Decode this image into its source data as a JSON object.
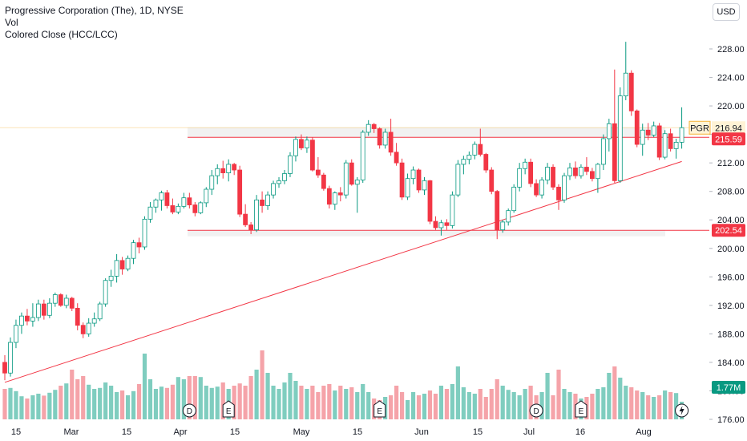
{
  "header": {
    "title": "Progressive Corporation (The), 1D, NYSE",
    "indicators": [
      "Vol",
      "Colored Close (HCC/LCC)"
    ],
    "currency": "USD"
  },
  "colors": {
    "up": "#089981",
    "down": "#f23645",
    "up_vol": "#7fcdbf",
    "down_vol": "#f5a3a9",
    "hcc": "#f5b335",
    "level_line": "#f23645",
    "band_fill": "#f0f0f0"
  },
  "chart_data": {
    "type": "candlestick",
    "symbol": "PGR",
    "ylim": [
      176,
      229.5
    ],
    "y_ticks": [
      "228.00",
      "224.00",
      "220.00",
      "216.00",
      "212.00",
      "208.00",
      "204.00",
      "200.00",
      "196.00",
      "192.00",
      "188.00",
      "184.00",
      "180.00",
      "176.00"
    ],
    "x_ticks": [
      "15",
      "Mar",
      "15",
      "Apr",
      "15",
      "May",
      "15",
      "Jun",
      "15",
      "Jul",
      "16",
      "Aug"
    ],
    "last_price": {
      "label": "PGR",
      "value": "216.94"
    },
    "price_labels": [
      "215.59",
      "202.54"
    ],
    "volume_label": "1.77M",
    "levels": [
      215.59,
      202.54
    ],
    "bands": [
      [
        215.59,
        217.0
      ],
      [
        202.54,
        201.7
      ]
    ],
    "trendline": {
      "from": [
        "Feb 8",
        181.2
      ],
      "to": [
        "Aug 2",
        212.2
      ]
    },
    "events": [
      "D",
      "E",
      "E",
      "D",
      "E"
    ],
    "candles": [
      {
        "o": 184.0,
        "h": 185.0,
        "l": 181.5,
        "c": 182.5,
        "v": 0.95,
        "d": "Feb 8"
      },
      {
        "o": 182.5,
        "h": 187.5,
        "l": 182.0,
        "c": 186.8,
        "v": 0.98,
        "d": "Feb 9"
      },
      {
        "o": 186.8,
        "h": 190.0,
        "l": 186.0,
        "c": 189.2,
        "v": 0.88,
        "d": "Feb 12"
      },
      {
        "o": 189.2,
        "h": 191.0,
        "l": 188.0,
        "c": 190.5,
        "v": 0.72,
        "d": "Feb 13"
      },
      {
        "o": 190.5,
        "h": 191.5,
        "l": 189.2,
        "c": 189.8,
        "v": 0.65,
        "d": "Feb 14"
      },
      {
        "o": 189.8,
        "h": 192.3,
        "l": 189.0,
        "c": 190.3,
        "v": 0.75,
        "d": "Feb 15"
      },
      {
        "o": 190.3,
        "h": 192.8,
        "l": 189.8,
        "c": 192.2,
        "v": 0.8,
        "d": "Feb 16"
      },
      {
        "o": 192.2,
        "h": 192.8,
        "l": 190.0,
        "c": 190.6,
        "v": 0.74,
        "d": "Feb 20"
      },
      {
        "o": 190.6,
        "h": 193.0,
        "l": 190.2,
        "c": 192.3,
        "v": 0.83,
        "d": "Feb 21"
      },
      {
        "o": 192.3,
        "h": 193.8,
        "l": 191.8,
        "c": 193.5,
        "v": 0.92,
        "d": "Feb 22"
      },
      {
        "o": 193.5,
        "h": 193.7,
        "l": 191.8,
        "c": 192.0,
        "v": 1.05,
        "d": "Feb 23"
      },
      {
        "o": 192.0,
        "h": 193.5,
        "l": 191.6,
        "c": 193.0,
        "v": 1.12,
        "d": "Feb 26"
      },
      {
        "o": 193.0,
        "h": 193.2,
        "l": 191.2,
        "c": 191.6,
        "v": 1.55,
        "d": "Feb 27"
      },
      {
        "o": 191.6,
        "h": 192.3,
        "l": 188.5,
        "c": 189.2,
        "v": 1.25,
        "d": "Feb 28"
      },
      {
        "o": 189.2,
        "h": 189.6,
        "l": 187.4,
        "c": 188.0,
        "v": 1.35,
        "d": "Feb 29"
      },
      {
        "o": 188.0,
        "h": 190.2,
        "l": 187.6,
        "c": 189.5,
        "v": 1.08,
        "d": "Mar 1"
      },
      {
        "o": 189.5,
        "h": 191.0,
        "l": 189.0,
        "c": 190.1,
        "v": 0.95,
        "d": "Mar 4"
      },
      {
        "o": 190.1,
        "h": 192.5,
        "l": 189.8,
        "c": 192.2,
        "v": 0.98,
        "d": "Mar 5"
      },
      {
        "o": 192.2,
        "h": 195.8,
        "l": 191.8,
        "c": 195.5,
        "v": 1.15,
        "d": "Mar 6"
      },
      {
        "o": 195.5,
        "h": 197.0,
        "l": 194.6,
        "c": 196.1,
        "v": 1.05,
        "d": "Mar 7"
      },
      {
        "o": 196.1,
        "h": 199.2,
        "l": 195.2,
        "c": 198.3,
        "v": 0.85,
        "d": "Mar 8"
      },
      {
        "o": 198.3,
        "h": 198.8,
        "l": 196.3,
        "c": 197.1,
        "v": 0.9,
        "d": "Mar 11"
      },
      {
        "o": 197.1,
        "h": 199.0,
        "l": 196.8,
        "c": 198.6,
        "v": 0.75,
        "d": "Mar 12"
      },
      {
        "o": 198.6,
        "h": 201.2,
        "l": 197.8,
        "c": 200.8,
        "v": 0.88,
        "d": "Mar 13"
      },
      {
        "o": 200.8,
        "h": 201.5,
        "l": 199.3,
        "c": 200.2,
        "v": 1.1,
        "d": "Mar 14"
      },
      {
        "o": 200.2,
        "h": 204.5,
        "l": 199.8,
        "c": 204.1,
        "v": 2.05,
        "d": "Mar 15"
      },
      {
        "o": 204.1,
        "h": 206.5,
        "l": 203.6,
        "c": 205.8,
        "v": 1.25,
        "d": "Mar 18"
      },
      {
        "o": 205.8,
        "h": 207.0,
        "l": 205.0,
        "c": 206.8,
        "v": 0.95,
        "d": "Mar 19"
      },
      {
        "o": 206.8,
        "h": 208.1,
        "l": 205.3,
        "c": 207.8,
        "v": 1.02,
        "d": "Mar 20"
      },
      {
        "o": 207.8,
        "h": 208.2,
        "l": 205.6,
        "c": 206.0,
        "v": 0.98,
        "d": "Mar 21"
      },
      {
        "o": 206.0,
        "h": 207.0,
        "l": 204.8,
        "c": 205.1,
        "v": 1.08,
        "d": "Mar 22"
      },
      {
        "o": 205.1,
        "h": 206.3,
        "l": 204.8,
        "c": 205.9,
        "v": 1.32,
        "d": "Mar 25"
      },
      {
        "o": 205.9,
        "h": 207.8,
        "l": 205.6,
        "c": 207.1,
        "v": 1.25,
        "d": "Mar 26"
      },
      {
        "o": 207.1,
        "h": 207.8,
        "l": 205.6,
        "c": 206.1,
        "v": 1.35,
        "d": "Mar 27"
      },
      {
        "o": 206.1,
        "h": 206.5,
        "l": 204.5,
        "c": 205.0,
        "v": 1.35,
        "d": "Mar 28"
      },
      {
        "o": 205.0,
        "h": 206.6,
        "l": 204.8,
        "c": 206.4,
        "v": 1.32,
        "d": "Apr 1"
      },
      {
        "o": 206.4,
        "h": 208.6,
        "l": 205.8,
        "c": 208.3,
        "v": 1.05,
        "d": "Apr 2"
      },
      {
        "o": 208.3,
        "h": 211.0,
        "l": 207.5,
        "c": 210.2,
        "v": 0.98,
        "d": "Apr 3"
      },
      {
        "o": 210.2,
        "h": 211.8,
        "l": 209.0,
        "c": 211.2,
        "v": 1.02,
        "d": "Apr 4"
      },
      {
        "o": 211.2,
        "h": 212.3,
        "l": 209.8,
        "c": 210.6,
        "v": 1.15,
        "d": "Apr 5"
      },
      {
        "o": 210.6,
        "h": 212.5,
        "l": 209.4,
        "c": 211.8,
        "v": 0.95,
        "d": "Apr 8"
      },
      {
        "o": 211.8,
        "h": 212.0,
        "l": 210.3,
        "c": 211.0,
        "v": 1.05,
        "d": "Apr 9"
      },
      {
        "o": 211.0,
        "h": 211.6,
        "l": 204.4,
        "c": 204.8,
        "v": 1.12,
        "d": "Apr 10"
      },
      {
        "o": 204.8,
        "h": 206.2,
        "l": 203.0,
        "c": 203.3,
        "v": 1.05,
        "d": "Apr 11"
      },
      {
        "o": 203.3,
        "h": 203.7,
        "l": 202.0,
        "c": 202.6,
        "v": 1.35,
        "d": "Apr 12"
      },
      {
        "o": 202.6,
        "h": 207.5,
        "l": 202.3,
        "c": 206.8,
        "v": 1.55,
        "d": "Apr 15"
      },
      {
        "o": 206.8,
        "h": 208.0,
        "l": 205.0,
        "c": 206.0,
        "v": 2.15,
        "d": "Apr 16"
      },
      {
        "o": 206.0,
        "h": 208.0,
        "l": 205.4,
        "c": 207.5,
        "v": 1.45,
        "d": "Apr 17"
      },
      {
        "o": 207.5,
        "h": 209.5,
        "l": 207.0,
        "c": 209.1,
        "v": 1.05,
        "d": "Apr 18"
      },
      {
        "o": 209.1,
        "h": 210.0,
        "l": 208.5,
        "c": 209.5,
        "v": 0.95,
        "d": "Apr 19"
      },
      {
        "o": 209.5,
        "h": 211.0,
        "l": 209.0,
        "c": 210.5,
        "v": 1.15,
        "d": "Apr 22"
      },
      {
        "o": 210.5,
        "h": 213.5,
        "l": 210.0,
        "c": 213.0,
        "v": 1.45,
        "d": "Apr 23"
      },
      {
        "o": 213.0,
        "h": 215.7,
        "l": 212.2,
        "c": 215.3,
        "v": 1.2,
        "d": "Apr 24"
      },
      {
        "o": 215.3,
        "h": 216.0,
        "l": 213.8,
        "c": 214.1,
        "v": 1.05,
        "d": "Apr 25"
      },
      {
        "o": 214.1,
        "h": 215.7,
        "l": 213.4,
        "c": 215.2,
        "v": 0.95,
        "d": "Apr 26"
      },
      {
        "o": 215.2,
        "h": 215.6,
        "l": 210.8,
        "c": 211.0,
        "v": 1.05,
        "d": "Apr 29"
      },
      {
        "o": 211.0,
        "h": 212.8,
        "l": 209.9,
        "c": 210.3,
        "v": 0.85,
        "d": "Apr 30"
      },
      {
        "o": 210.3,
        "h": 210.6,
        "l": 208.1,
        "c": 208.4,
        "v": 1.05,
        "d": "May 1"
      },
      {
        "o": 208.4,
        "h": 208.8,
        "l": 205.6,
        "c": 206.2,
        "v": 1.1,
        "d": "May 2"
      },
      {
        "o": 206.2,
        "h": 208.0,
        "l": 205.4,
        "c": 207.8,
        "v": 0.9,
        "d": "May 3"
      },
      {
        "o": 207.8,
        "h": 208.6,
        "l": 206.6,
        "c": 207.5,
        "v": 1.05,
        "d": "May 6"
      },
      {
        "o": 207.5,
        "h": 212.4,
        "l": 207.0,
        "c": 212.0,
        "v": 0.95,
        "d": "May 7"
      },
      {
        "o": 212.0,
        "h": 212.5,
        "l": 208.8,
        "c": 209.0,
        "v": 1.0,
        "d": "May 8"
      },
      {
        "o": 209.0,
        "h": 210.0,
        "l": 205.0,
        "c": 209.6,
        "v": 0.85,
        "d": "May 9"
      },
      {
        "o": 209.6,
        "h": 216.6,
        "l": 209.2,
        "c": 216.3,
        "v": 1.1,
        "d": "May 10"
      },
      {
        "o": 216.3,
        "h": 218.0,
        "l": 215.8,
        "c": 217.4,
        "v": 0.85,
        "d": "May 13"
      },
      {
        "o": 217.4,
        "h": 217.6,
        "l": 216.2,
        "c": 216.8,
        "v": 0.65,
        "d": "May 14"
      },
      {
        "o": 216.8,
        "h": 217.0,
        "l": 214.0,
        "c": 214.5,
        "v": 0.6,
        "d": "May 15"
      },
      {
        "o": 214.5,
        "h": 216.8,
        "l": 214.0,
        "c": 216.3,
        "v": 0.7,
        "d": "May 16"
      },
      {
        "o": 216.3,
        "h": 218.2,
        "l": 213.0,
        "c": 213.5,
        "v": 0.75,
        "d": "May 17"
      },
      {
        "o": 213.5,
        "h": 214.8,
        "l": 211.6,
        "c": 212.0,
        "v": 1.05,
        "d": "May 20"
      },
      {
        "o": 212.0,
        "h": 212.6,
        "l": 206.8,
        "c": 207.2,
        "v": 0.85,
        "d": "May 21"
      },
      {
        "o": 207.2,
        "h": 210.5,
        "l": 206.8,
        "c": 209.8,
        "v": 0.6,
        "d": "May 22"
      },
      {
        "o": 209.8,
        "h": 211.5,
        "l": 209.0,
        "c": 211.0,
        "v": 0.85,
        "d": "May 23"
      },
      {
        "o": 211.0,
        "h": 211.2,
        "l": 207.8,
        "c": 208.2,
        "v": 0.75,
        "d": "May 24"
      },
      {
        "o": 208.2,
        "h": 210.0,
        "l": 207.5,
        "c": 209.5,
        "v": 0.8,
        "d": "May 28"
      },
      {
        "o": 209.5,
        "h": 209.6,
        "l": 203.4,
        "c": 203.8,
        "v": 0.9,
        "d": "May 29"
      },
      {
        "o": 203.8,
        "h": 204.5,
        "l": 202.6,
        "c": 202.9,
        "v": 0.8,
        "d": "May 30"
      },
      {
        "o": 202.9,
        "h": 204.0,
        "l": 201.8,
        "c": 203.6,
        "v": 1.05,
        "d": "May 31"
      },
      {
        "o": 203.6,
        "h": 204.1,
        "l": 202.6,
        "c": 203.2,
        "v": 0.95,
        "d": "Jun 3"
      },
      {
        "o": 203.2,
        "h": 208.0,
        "l": 202.8,
        "c": 207.5,
        "v": 1.1,
        "d": "Jun 4"
      },
      {
        "o": 207.5,
        "h": 212.4,
        "l": 207.2,
        "c": 211.8,
        "v": 1.65,
        "d": "Jun 5"
      },
      {
        "o": 211.8,
        "h": 213.0,
        "l": 210.4,
        "c": 212.5,
        "v": 1.0,
        "d": "Jun 6"
      },
      {
        "o": 212.5,
        "h": 213.6,
        "l": 211.8,
        "c": 213.1,
        "v": 0.85,
        "d": "Jun 7"
      },
      {
        "o": 213.1,
        "h": 215.0,
        "l": 212.5,
        "c": 214.6,
        "v": 0.8,
        "d": "Jun 10"
      },
      {
        "o": 214.6,
        "h": 216.8,
        "l": 212.9,
        "c": 213.2,
        "v": 0.95,
        "d": "Jun 11"
      },
      {
        "o": 213.2,
        "h": 213.4,
        "l": 210.6,
        "c": 211.0,
        "v": 0.7,
        "d": "Jun 12"
      },
      {
        "o": 211.0,
        "h": 211.4,
        "l": 207.6,
        "c": 208.0,
        "v": 0.95,
        "d": "Jun 13"
      },
      {
        "o": 208.0,
        "h": 208.2,
        "l": 201.3,
        "c": 202.6,
        "v": 1.25,
        "d": "Jun 14"
      },
      {
        "o": 202.6,
        "h": 204.0,
        "l": 202.2,
        "c": 203.7,
        "v": 1.05,
        "d": "Jun 17"
      },
      {
        "o": 203.7,
        "h": 205.6,
        "l": 203.2,
        "c": 205.3,
        "v": 0.92,
        "d": "Jun 18"
      },
      {
        "o": 205.3,
        "h": 209.0,
        "l": 205.0,
        "c": 208.6,
        "v": 0.85,
        "d": "Jun 20"
      },
      {
        "o": 208.6,
        "h": 212.0,
        "l": 208.0,
        "c": 211.2,
        "v": 0.75,
        "d": "Jun 21"
      },
      {
        "o": 211.2,
        "h": 212.6,
        "l": 210.4,
        "c": 212.1,
        "v": 0.95,
        "d": "Jun 24"
      },
      {
        "o": 212.1,
        "h": 212.6,
        "l": 208.6,
        "c": 209.1,
        "v": 1.05,
        "d": "Jun 25"
      },
      {
        "o": 209.1,
        "h": 209.7,
        "l": 207.2,
        "c": 207.5,
        "v": 0.75,
        "d": "Jun 26"
      },
      {
        "o": 207.5,
        "h": 210.0,
        "l": 207.0,
        "c": 209.6,
        "v": 0.85,
        "d": "Jun 27"
      },
      {
        "o": 209.6,
        "h": 212.0,
        "l": 209.0,
        "c": 211.4,
        "v": 1.45,
        "d": "Jun 28"
      },
      {
        "o": 211.4,
        "h": 211.8,
        "l": 208.2,
        "c": 208.6,
        "v": 0.75,
        "d": "Jul 1"
      },
      {
        "o": 208.6,
        "h": 209.0,
        "l": 205.4,
        "c": 206.8,
        "v": 1.55,
        "d": "Jul 2"
      },
      {
        "o": 206.8,
        "h": 210.6,
        "l": 206.4,
        "c": 210.2,
        "v": 0.95,
        "d": "Jul 3"
      },
      {
        "o": 210.2,
        "h": 212.0,
        "l": 209.6,
        "c": 211.3,
        "v": 0.85,
        "d": "Jul 5"
      },
      {
        "o": 211.3,
        "h": 212.2,
        "l": 209.8,
        "c": 210.2,
        "v": 0.8,
        "d": "Jul 8"
      },
      {
        "o": 210.2,
        "h": 211.8,
        "l": 209.8,
        "c": 211.4,
        "v": 0.65,
        "d": "Jul 9"
      },
      {
        "o": 211.4,
        "h": 212.8,
        "l": 210.3,
        "c": 210.8,
        "v": 0.7,
        "d": "Jul 10"
      },
      {
        "o": 210.8,
        "h": 211.3,
        "l": 209.4,
        "c": 209.8,
        "v": 0.8,
        "d": "Jul 11"
      },
      {
        "o": 209.8,
        "h": 212.0,
        "l": 207.8,
        "c": 211.8,
        "v": 0.95,
        "d": "Jul 12"
      },
      {
        "o": 211.8,
        "h": 216.0,
        "l": 211.0,
        "c": 215.4,
        "v": 1.0,
        "d": "Jul 15"
      },
      {
        "o": 215.4,
        "h": 218.2,
        "l": 213.6,
        "c": 217.5,
        "v": 1.45,
        "d": "Jul 16"
      },
      {
        "o": 217.5,
        "h": 225.1,
        "l": 209.2,
        "c": 209.5,
        "v": 1.65,
        "d": "Jul 17"
      },
      {
        "o": 209.5,
        "h": 222.6,
        "l": 209.2,
        "c": 221.4,
        "v": 1.3,
        "d": "Jul 18"
      },
      {
        "o": 221.4,
        "h": 229.0,
        "l": 220.8,
        "c": 224.6,
        "v": 1.05,
        "d": "Jul 19"
      },
      {
        "o": 224.6,
        "h": 225.0,
        "l": 218.6,
        "c": 219.3,
        "v": 1.0,
        "d": "Jul 22"
      },
      {
        "o": 219.3,
        "h": 219.5,
        "l": 214.2,
        "c": 214.6,
        "v": 0.9,
        "d": "Jul 23"
      },
      {
        "o": 214.6,
        "h": 217.5,
        "l": 213.0,
        "c": 216.6,
        "v": 0.85,
        "d": "Jul 24"
      },
      {
        "o": 216.6,
        "h": 217.6,
        "l": 215.2,
        "c": 215.9,
        "v": 0.75,
        "d": "Jul 25"
      },
      {
        "o": 215.9,
        "h": 217.8,
        "l": 215.6,
        "c": 217.2,
        "v": 0.7,
        "d": "Jul 26"
      },
      {
        "o": 217.2,
        "h": 217.6,
        "l": 212.4,
        "c": 212.8,
        "v": 0.75,
        "d": "Jul 29"
      },
      {
        "o": 212.8,
        "h": 216.6,
        "l": 212.5,
        "c": 216.1,
        "v": 0.9,
        "d": "Jul 30"
      },
      {
        "o": 216.1,
        "h": 216.8,
        "l": 213.6,
        "c": 214.0,
        "v": 0.85,
        "d": "Jul 31"
      },
      {
        "o": 214.0,
        "h": 215.4,
        "l": 212.6,
        "c": 214.9,
        "v": 0.82,
        "d": "Aug 1"
      },
      {
        "o": 214.9,
        "h": 219.8,
        "l": 214.0,
        "c": 216.94,
        "v": 0.55,
        "d": "Aug 2"
      }
    ]
  }
}
